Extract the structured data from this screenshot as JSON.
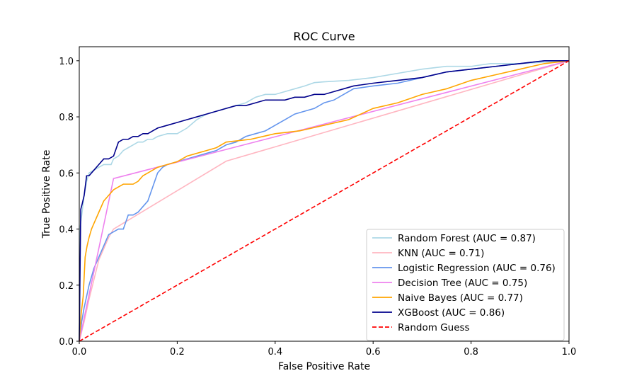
{
  "chart_data": {
    "type": "line",
    "title": "ROC Curve",
    "xlabel": "False Positive Rate",
    "ylabel": "True Positive Rate",
    "xlim": [
      0.0,
      1.0
    ],
    "ylim": [
      0.0,
      1.05
    ],
    "x_ticks": [
      "0.0",
      "0.2",
      "0.4",
      "0.6",
      "0.8",
      "1.0"
    ],
    "y_ticks": [
      "0.0",
      "0.2",
      "0.4",
      "0.6",
      "0.8",
      "1.0"
    ],
    "grid": false,
    "legend_position": "bottom-right",
    "series": [
      {
        "name": "Random Forest (AUC = 0.87)",
        "color": "#add8e6",
        "style": "solid",
        "x": [
          0,
          0.002,
          0.005,
          0.01,
          0.015,
          0.02,
          0.03,
          0.04,
          0.05,
          0.065,
          0.07,
          0.08,
          0.09,
          0.1,
          0.11,
          0.12,
          0.13,
          0.14,
          0.15,
          0.16,
          0.18,
          0.19,
          0.2,
          0.22,
          0.24,
          0.26,
          0.28,
          0.3,
          0.32,
          0.34,
          0.36,
          0.38,
          0.4,
          0.42,
          0.44,
          0.46,
          0.48,
          0.5,
          0.55,
          0.6,
          0.65,
          0.7,
          0.75,
          0.8,
          0.82,
          0.84,
          0.86,
          0.9,
          0.95,
          1.0
        ],
        "y": [
          0.0,
          0.41,
          0.45,
          0.52,
          0.57,
          0.6,
          0.61,
          0.62,
          0.63,
          0.63,
          0.65,
          0.66,
          0.68,
          0.69,
          0.7,
          0.71,
          0.71,
          0.72,
          0.72,
          0.73,
          0.74,
          0.74,
          0.74,
          0.76,
          0.79,
          0.81,
          0.82,
          0.83,
          0.84,
          0.85,
          0.87,
          0.88,
          0.88,
          0.89,
          0.9,
          0.91,
          0.922,
          0.925,
          0.93,
          0.94,
          0.955,
          0.97,
          0.98,
          0.98,
          0.985,
          0.99,
          0.99,
          0.99,
          0.995,
          1.0
        ]
      },
      {
        "name": "KNN (AUC = 0.71)",
        "color": "#ffb6c1",
        "style": "solid",
        "x": [
          0,
          0.01,
          0.02,
          0.03,
          0.04,
          0.05,
          0.06,
          0.07,
          0.3,
          1.0
        ],
        "y": [
          0.0,
          0.07,
          0.15,
          0.22,
          0.29,
          0.33,
          0.37,
          0.4,
          0.642,
          1.0
        ]
      },
      {
        "name": "Logistic Regression (AUC = 0.76)",
        "color": "#6495ed",
        "style": "solid",
        "x": [
          0,
          0.005,
          0.01,
          0.015,
          0.02,
          0.025,
          0.03,
          0.035,
          0.04,
          0.05,
          0.06,
          0.07,
          0.08,
          0.09,
          0.1,
          0.11,
          0.12,
          0.13,
          0.14,
          0.15,
          0.16,
          0.17,
          0.18,
          0.2,
          0.22,
          0.24,
          0.26,
          0.28,
          0.3,
          0.32,
          0.34,
          0.36,
          0.38,
          0.4,
          0.42,
          0.44,
          0.46,
          0.48,
          0.5,
          0.52,
          0.54,
          0.56,
          0.6,
          0.65,
          0.7,
          0.75,
          0.8,
          0.85,
          0.9,
          0.95,
          1.0
        ],
        "y": [
          0.0,
          0.07,
          0.12,
          0.16,
          0.2,
          0.23,
          0.26,
          0.28,
          0.3,
          0.34,
          0.38,
          0.39,
          0.4,
          0.4,
          0.45,
          0.45,
          0.46,
          0.48,
          0.5,
          0.55,
          0.6,
          0.62,
          0.63,
          0.64,
          0.65,
          0.66,
          0.67,
          0.68,
          0.7,
          0.71,
          0.73,
          0.74,
          0.75,
          0.77,
          0.79,
          0.81,
          0.82,
          0.83,
          0.85,
          0.86,
          0.88,
          0.9,
          0.91,
          0.92,
          0.94,
          0.96,
          0.97,
          0.98,
          0.99,
          1.0,
          1.0
        ]
      },
      {
        "name": "Decision Tree (AUC = 0.75)",
        "color": "#ee82ee",
        "style": "solid",
        "x": [
          0,
          0.07,
          1.0
        ],
        "y": [
          0.0,
          0.58,
          1.0
        ]
      },
      {
        "name": "Naive Bayes (AUC = 0.77)",
        "color": "#ffa500",
        "style": "solid",
        "x": [
          0,
          0.004,
          0.008,
          0.012,
          0.016,
          0.02,
          0.025,
          0.03,
          0.035,
          0.04,
          0.05,
          0.06,
          0.07,
          0.08,
          0.09,
          0.1,
          0.11,
          0.12,
          0.13,
          0.14,
          0.15,
          0.16,
          0.18,
          0.2,
          0.22,
          0.24,
          0.26,
          0.28,
          0.3,
          0.35,
          0.4,
          0.45,
          0.5,
          0.55,
          0.6,
          0.65,
          0.7,
          0.75,
          0.8,
          0.85,
          0.9,
          0.95,
          1.0
        ],
        "y": [
          0.0,
          0.1,
          0.16,
          0.3,
          0.34,
          0.37,
          0.4,
          0.42,
          0.44,
          0.46,
          0.5,
          0.52,
          0.54,
          0.55,
          0.56,
          0.56,
          0.56,
          0.57,
          0.59,
          0.6,
          0.61,
          0.62,
          0.63,
          0.64,
          0.66,
          0.67,
          0.68,
          0.69,
          0.71,
          0.72,
          0.74,
          0.75,
          0.77,
          0.79,
          0.83,
          0.85,
          0.88,
          0.9,
          0.93,
          0.95,
          0.97,
          0.99,
          1.0
        ]
      },
      {
        "name": "XGBoost (AUC = 0.86)",
        "color": "#00008b",
        "style": "solid",
        "x": [
          0,
          0.003,
          0.006,
          0.01,
          0.015,
          0.02,
          0.03,
          0.04,
          0.05,
          0.06,
          0.07,
          0.08,
          0.09,
          0.1,
          0.11,
          0.12,
          0.13,
          0.14,
          0.15,
          0.16,
          0.18,
          0.2,
          0.22,
          0.24,
          0.26,
          0.28,
          0.3,
          0.32,
          0.34,
          0.36,
          0.38,
          0.4,
          0.42,
          0.44,
          0.46,
          0.48,
          0.5,
          0.52,
          0.54,
          0.56,
          0.6,
          0.65,
          0.7,
          0.75,
          0.8,
          0.85,
          0.9,
          0.95,
          1.0
        ],
        "y": [
          0.0,
          0.47,
          0.49,
          0.52,
          0.59,
          0.59,
          0.61,
          0.63,
          0.65,
          0.65,
          0.66,
          0.71,
          0.72,
          0.72,
          0.73,
          0.73,
          0.74,
          0.74,
          0.75,
          0.76,
          0.77,
          0.78,
          0.79,
          0.8,
          0.81,
          0.82,
          0.83,
          0.84,
          0.84,
          0.85,
          0.86,
          0.86,
          0.86,
          0.87,
          0.87,
          0.88,
          0.88,
          0.89,
          0.9,
          0.91,
          0.92,
          0.93,
          0.94,
          0.96,
          0.97,
          0.98,
          0.99,
          1.0,
          1.0
        ]
      },
      {
        "name": "Random Guess",
        "color": "#ff0000",
        "style": "dashed",
        "x": [
          0,
          1.0
        ],
        "y": [
          0.0,
          1.0
        ]
      }
    ]
  }
}
